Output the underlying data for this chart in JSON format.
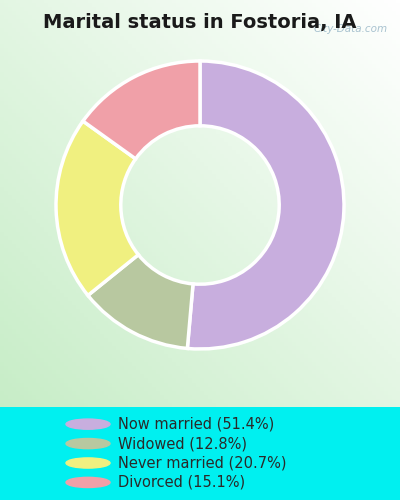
{
  "title": "Marital status in Fostoria, IA",
  "slices": [
    51.4,
    12.8,
    20.7,
    15.1
  ],
  "labels": [
    "Now married (51.4%)",
    "Widowed (12.8%)",
    "Never married (20.7%)",
    "Divorced (15.1%)"
  ],
  "colors": [
    "#c8aede",
    "#b8c8a0",
    "#f0f080",
    "#f0a0a8"
  ],
  "bg_color_outer": "#00f0f0",
  "watermark": "City-Data.com",
  "start_angle": 90,
  "donut_width": 0.45,
  "title_fontsize": 14,
  "legend_fontsize": 10.5
}
